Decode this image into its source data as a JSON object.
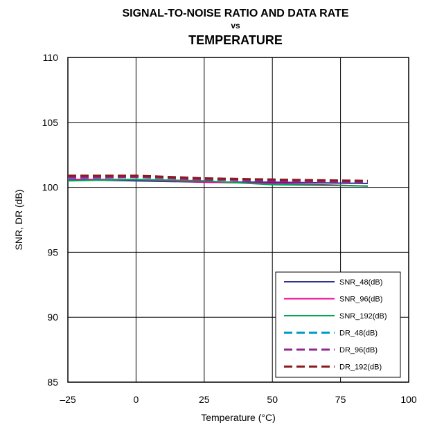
{
  "chart_data": {
    "type": "line",
    "title_lines": [
      "SIGNAL-TO-NOISE RATIO AND DATA RATE",
      "vs",
      "TEMPERATURE"
    ],
    "xlabel": "Temperature (°C)",
    "ylabel": "SNR, DR (dB)",
    "xlim": [
      -25,
      100
    ],
    "ylim": [
      85,
      110
    ],
    "xticks": [
      "–25",
      "0",
      "25",
      "50",
      "75",
      "100"
    ],
    "xtick_values": [
      -25,
      0,
      25,
      50,
      75,
      100
    ],
    "yticks": [
      "85",
      "90",
      "95",
      "100",
      "105",
      "110"
    ],
    "ytick_values": [
      85,
      90,
      95,
      100,
      105,
      110
    ],
    "grid": true,
    "legend_position": "bottom-right",
    "x": [
      -25,
      0,
      25,
      50,
      85
    ],
    "series": [
      {
        "name": "SNR_48(dB)",
        "color": "#2e3192",
        "dash": "solid",
        "values": [
          100.6,
          100.5,
          100.4,
          100.4,
          100.3
        ]
      },
      {
        "name": "SNR_96(dB)",
        "color": "#ec008c",
        "dash": "solid",
        "values": [
          100.6,
          100.6,
          100.4,
          100.3,
          100.1
        ]
      },
      {
        "name": "SNR_192(dB)",
        "color": "#00a651",
        "dash": "solid",
        "values": [
          100.5,
          100.6,
          100.5,
          100.2,
          100.1
        ]
      },
      {
        "name": "DR_48(dB)",
        "color": "#0099cc",
        "dash": "dashed",
        "values": [
          100.7,
          100.8,
          100.6,
          100.6,
          100.4
        ]
      },
      {
        "name": "DR_96(dB)",
        "color": "#92278f",
        "dash": "dashed",
        "values": [
          100.8,
          100.8,
          100.6,
          100.5,
          100.4
        ]
      },
      {
        "name": "DR_192(dB)",
        "color": "#8b1a1a",
        "dash": "dashed",
        "values": [
          100.9,
          100.9,
          100.7,
          100.6,
          100.5
        ]
      }
    ]
  }
}
